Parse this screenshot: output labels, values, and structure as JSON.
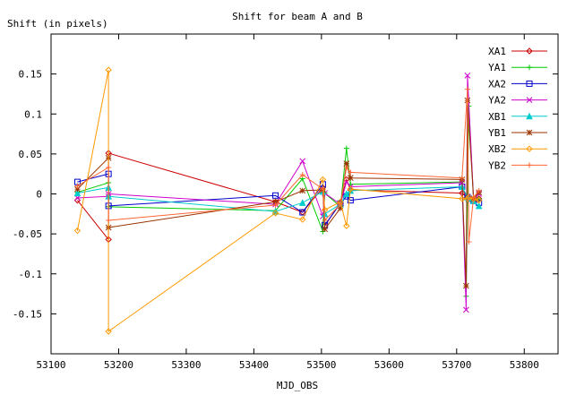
{
  "chart_data": {
    "type": "line",
    "title": "Shift for beam A and B",
    "xlabel": "MJD_OBS",
    "ylabel": "Shift (in pixels)",
    "xlim": [
      53100,
      53850
    ],
    "ylim": [
      -0.2,
      0.2
    ],
    "xticks": [
      53100,
      53200,
      53300,
      53400,
      53500,
      53600,
      53700,
      53800
    ],
    "yticks": [
      -0.15,
      -0.1,
      -0.05,
      0,
      0.05,
      0.1,
      0.15
    ],
    "ytick_labels": [
      "-0.15",
      "-0.1",
      "-0.05",
      "0",
      "0.05",
      "0.1",
      "0.15"
    ],
    "grid": false,
    "legend": "top-right",
    "series": [
      {
        "name": "XA1",
        "color": "#cc0000",
        "marker": "diamond",
        "x": [
          53139,
          53185,
          53185,
          53432,
          53472,
          53502,
          53505,
          53528,
          53537,
          53543,
          53708,
          53716,
          53718,
          53725,
          53733
        ],
        "y": [
          -0.008,
          -0.057,
          0.051,
          -0.01,
          -0.023,
          0.008,
          -0.04,
          -0.011,
          0.018,
          0.005,
          0.001,
          -0.004,
          -0.005,
          -0.007,
          -0.006
        ]
      },
      {
        "name": "YA1",
        "color": "#00cc00",
        "marker": "plus",
        "x": [
          53139,
          53185,
          53185,
          53432,
          53472,
          53502,
          53505,
          53528,
          53537,
          53543,
          53708,
          53714,
          53718,
          53725,
          53733
        ],
        "y": [
          0.002,
          0.014,
          -0.016,
          -0.021,
          0.019,
          -0.047,
          0.001,
          -0.016,
          0.057,
          0.012,
          0.015,
          -0.128,
          0.11,
          -0.009,
          -0.006
        ]
      },
      {
        "name": "XA2",
        "color": "#0000cc",
        "marker": "square",
        "x": [
          53139,
          53185,
          53185,
          53432,
          53472,
          53502,
          53505,
          53528,
          53537,
          53543,
          53708,
          53716,
          53718,
          53725,
          53733
        ],
        "y": [
          0.015,
          0.025,
          -0.015,
          -0.002,
          -0.023,
          0.012,
          -0.039,
          -0.012,
          -0.003,
          -0.008,
          0.009,
          -0.004,
          -0.006,
          -0.008,
          -0.011
        ]
      },
      {
        "name": "YA2",
        "color": "#cc00cc",
        "marker": "x",
        "x": [
          53139,
          53185,
          53185,
          53432,
          53472,
          53502,
          53505,
          53528,
          53537,
          53543,
          53708,
          53714,
          53716,
          53725,
          53733
        ],
        "y": [
          -0.005,
          -0.003,
          0.0,
          -0.013,
          0.041,
          -0.028,
          0.001,
          -0.013,
          0.015,
          0.009,
          0.014,
          -0.145,
          0.148,
          -0.007,
          0.0
        ]
      },
      {
        "name": "XB1",
        "color": "#00cccc",
        "marker": "triangle",
        "x": [
          53139,
          53185,
          53185,
          53432,
          53472,
          53502,
          53505,
          53528,
          53537,
          53543,
          53708,
          53716,
          53718,
          53725,
          53733
        ],
        "y": [
          0.001,
          0.008,
          -0.003,
          -0.022,
          -0.011,
          0.003,
          -0.025,
          -0.013,
          0.0,
          0.004,
          0.009,
          -0.004,
          -0.006,
          -0.009,
          -0.015
        ]
      },
      {
        "name": "YB1",
        "color": "#993300",
        "marker": "star",
        "x": [
          53139,
          53185,
          53185,
          53432,
          53472,
          53502,
          53505,
          53528,
          53537,
          53543,
          53708,
          53714,
          53716,
          53725,
          53733
        ],
        "y": [
          0.006,
          0.045,
          -0.042,
          -0.01,
          0.004,
          0.005,
          -0.044,
          -0.018,
          0.038,
          0.02,
          0.018,
          -0.115,
          0.117,
          -0.006,
          0.002
        ]
      },
      {
        "name": "XB2",
        "color": "#ff9900",
        "marker": "diamond",
        "x": [
          53139,
          53185,
          53185,
          53432,
          53472,
          53502,
          53505,
          53528,
          53537,
          53543,
          53708,
          53716,
          53718,
          53725,
          53733
        ],
        "y": [
          -0.046,
          0.155,
          -0.172,
          -0.024,
          -0.032,
          0.018,
          -0.02,
          -0.01,
          -0.04,
          0.006,
          -0.006,
          -0.006,
          -0.004,
          -0.006,
          -0.008
        ]
      },
      {
        "name": "YB2",
        "color": "#ff6633",
        "marker": "plus",
        "x": [
          53139,
          53185,
          53185,
          53432,
          53472,
          53502,
          53505,
          53528,
          53537,
          53543,
          53708,
          53716,
          53718,
          53725,
          53733
        ],
        "y": [
          0.01,
          0.033,
          -0.033,
          -0.014,
          0.024,
          0.006,
          -0.033,
          -0.013,
          0.033,
          0.027,
          0.02,
          0.131,
          -0.06,
          -0.004,
          0.004
        ]
      }
    ]
  }
}
